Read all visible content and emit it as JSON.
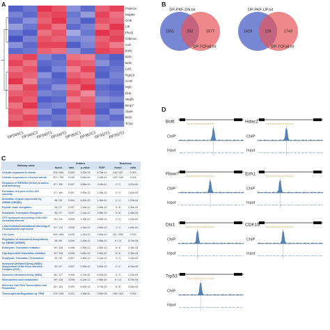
{
  "panels": [
    "A",
    "B",
    "C",
    "D"
  ],
  "heatmap": {
    "columns": [
      "DP240C1",
      "DP240C2",
      "DP240T1",
      "DP240T2",
      "DP352C1",
      "DP352C2",
      "DP352T1",
      "DP352T2"
    ],
    "genes": [
      "Hspa1a",
      "Mapk4",
      "Ccl5",
      "Ltb",
      "Plcd1",
      "Cdkn1a",
      "Cd7",
      "Ikzf2",
      "Il2rb",
      "Bcl6",
      "Lef1",
      "Rgs10",
      "Ccr9",
      "Myb",
      "Dntt",
      "Vegfa",
      "Bmp7",
      "Stat4",
      "Bcl2",
      "Tcf12"
    ],
    "values": [
      [
        -1.3,
        -1.1,
        1.4,
        1.2,
        -0.9,
        -1.2,
        1.1,
        1.3
      ],
      [
        -1.0,
        -1.2,
        1.2,
        1.3,
        -1.1,
        -0.8,
        1.3,
        1.0
      ],
      [
        -1.2,
        -0.9,
        1.1,
        1.4,
        -1.0,
        -1.3,
        1.2,
        1.1
      ],
      [
        -0.8,
        -1.1,
        1.3,
        1.0,
        -1.2,
        -1.0,
        1.0,
        1.4
      ],
      [
        -1.1,
        -1.3,
        1.0,
        1.2,
        -0.7,
        -1.1,
        1.4,
        1.2
      ],
      [
        -1.4,
        -1.0,
        1.2,
        1.1,
        -1.0,
        -0.9,
        1.1,
        1.3
      ],
      [
        -0.9,
        -1.2,
        1.3,
        1.3,
        -1.3,
        -1.0,
        1.2,
        0.9
      ],
      [
        -1.2,
        -1.1,
        1.1,
        1.0,
        -0.9,
        -1.2,
        1.3,
        1.2
      ],
      [
        1.1,
        1.3,
        -1.0,
        -1.2,
        1.0,
        0.9,
        -1.1,
        -1.3
      ],
      [
        1.3,
        1.0,
        -1.2,
        -1.1,
        1.2,
        1.1,
        -0.9,
        -1.2
      ],
      [
        1.0,
        1.2,
        -1.3,
        -1.0,
        0.9,
        1.3,
        -1.2,
        -1.1
      ],
      [
        1.2,
        1.1,
        -0.9,
        -1.3,
        1.1,
        1.0,
        -1.3,
        -1.0
      ],
      [
        1.4,
        0.9,
        -1.1,
        -1.2,
        1.3,
        1.2,
        -1.0,
        -1.1
      ],
      [
        0.9,
        1.3,
        -1.2,
        -0.9,
        1.0,
        1.4,
        -1.2,
        -1.3
      ],
      [
        1.1,
        1.2,
        -1.0,
        -1.1,
        1.2,
        0.8,
        -1.1,
        -1.2
      ],
      [
        1.3,
        1.1,
        -1.3,
        -1.2,
        0.9,
        1.1,
        -0.9,
        -1.0
      ],
      [
        1.0,
        1.4,
        -1.1,
        -1.0,
        1.3,
        1.2,
        -1.2,
        -1.3
      ],
      [
        1.2,
        1.0,
        -0.9,
        -1.3,
        1.1,
        1.3,
        -1.3,
        -0.9
      ],
      [
        1.1,
        1.3,
        -1.2,
        -1.1,
        1.0,
        0.9,
        -1.0,
        -1.2
      ],
      [
        1.3,
        1.2,
        -1.0,
        -1.2,
        1.2,
        1.0,
        -1.1,
        -1.0
      ]
    ]
  },
  "venn": [
    {
      "set1": "DP-PKF-DN.txt",
      "set2": "DP-TCFall.txt",
      "only1": 1551,
      "both": 292,
      "only2": 1577
    },
    {
      "set1": "DP-PKF-UP.txt",
      "set2": "DP-TCFall.txt",
      "only1": 1429,
      "both": 128,
      "only2": 1743
    }
  ],
  "table": {
    "header": [
      "Pathway name",
      "Entities",
      "Reactions"
    ],
    "subheader": [
      "found",
      "ratio",
      "p-value",
      "FDR*",
      "found",
      "ratio"
    ],
    "rows": [
      [
        "Cellular responses to stress",
        "323 / 699",
        "0.049",
        "3.22e-15",
        "8.78e-12",
        "146 / 327",
        "0.013"
      ],
      [
        "Cellular responses to external stimuli",
        "327 / 709",
        "0.049",
        "5.84e-14",
        "2.45e-11",
        "152 / 349",
        "0.014"
      ],
      [
        "Response of EIF2AK4 (GCN2) to amino acid deficiency",
        "57 / 100",
        "0.007",
        "4.66e-14",
        "2.45e-11",
        "2 / 3",
        "1.22e-04"
      ],
      [
        "Formation of a pool of free 40S subunits",
        "57 / 100",
        "0.007",
        "2.83e-13",
        "1.38e-10",
        "3 / 4",
        "1.63e-04"
      ],
      [
        "Activation of gene expression by SREBF (SREBP)",
        "36 / 53",
        "0.004",
        "4.62e-13",
        "1.38e-10",
        "2 / 3",
        "1.22e-04"
      ],
      [
        "Peptide chain elongation",
        "54 / 97",
        "0.007",
        "1.08e-12",
        "2.85e-10",
        "5 / 6",
        "2.45e-04"
      ],
      [
        "Eukaryotic Translation Elongation",
        "55 / 97",
        "0.007",
        "1.11e-12",
        "2.85e-10",
        "5 / 6",
        "2.45e-04"
      ],
      [
        "GTP hydrolysis and joining of the 60S ribosomal subunit",
        "59 / 111",
        "0.008",
        "1.16e-12",
        "2.85e-10",
        "3 / 3",
        "1.22e-04"
      ],
      [
        "L13a-mediated translational silencing of Ceruloplasmin expression",
        "57 / 110",
        "0.008",
        "1.34e-12",
        "2.85e-10",
        "4 / 4",
        "1.63e-04"
      ],
      [
        "Cell Cycle",
        "263 / 694",
        "0.049",
        "1.32e-12",
        "2.85e-10",
        "201 / 555",
        "0.023"
      ],
      [
        "Regulation of cholesterol biosynthesis by SREBP (SREBF)",
        "38 / 60",
        "0.004",
        "1.46e-12",
        "2.85e-10",
        "9 / 14",
        "5.70e-04"
      ],
      [
        "Eukaryotic Translation Initiation",
        "59 / 118",
        "0.008",
        "1.65e-12",
        "2.85e-10",
        "6 / 6",
        "2.45e-04"
      ],
      [
        "Cap-dependent Translation Initiation",
        "59 / 118",
        "0.008",
        "1.65e-12",
        "2.85e-10",
        "6 / 6",
        "2.45e-04"
      ],
      [
        "Eukaryotic Translation Termination",
        "53 / 96",
        "0.007",
        "1.85e-12",
        "3.15e-10",
        "3 / 3",
        "1.22e-04"
      ],
      [
        "Nonsense Mediated Decay (NMD) independent of the Exon Junction Complex (EJC)",
        "53 / 97",
        "0.007",
        "2.45e-12",
        "3.80e-10",
        "2 / 2",
        "8.15e-05"
      ],
      [
        "Nonsense-Mediated Decay (NMD)",
        "58 / 117",
        "0.008",
        "4.72e-12",
        "6.63e-10",
        "3 / 3",
        "1.22e-04"
      ],
      [
        "Selenoamino acid metabolism",
        "58 / 118",
        "0.008",
        "6.14e-12",
        "7.86e-10",
        "5 / 14",
        "5.70e-04"
      ],
      [
        "Influenza Viral RNA Transcription and Replication",
        "62 / 134",
        "0.009",
        "8.40e-12",
        "9.73e-10",
        "8 / 8",
        "3.26e-04"
      ],
      [
        "Transcriptional Regulation by TP53",
        "174 / 445",
        "0.031",
        "2.48e-11",
        "2.65e-09",
        "156 / 313",
        "0.013"
      ]
    ]
  },
  "tracks": [
    {
      "gene": "Bcl6",
      "chip": "ChIP",
      "input": "Input"
    },
    {
      "gene": "Hdac2",
      "chip": "ChIP",
      "input": "Input"
    },
    {
      "gene": "Fbxw7",
      "chip": "ChIP",
      "input": "Input"
    },
    {
      "gene": "Ezh1",
      "chip": "ChIP",
      "input": "Input"
    },
    {
      "gene": "Dtx1",
      "chip": "ChIP",
      "input": "Input"
    },
    {
      "gene": "CDK16",
      "chip": "ChIP",
      "input": "Input"
    },
    {
      "gene": "Trp53",
      "chip": "ChIP",
      "input": "Input"
    }
  ]
}
